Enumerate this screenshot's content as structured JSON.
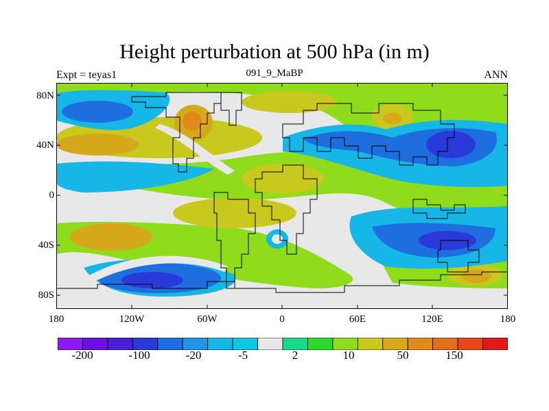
{
  "title": "Height perturbation at 500 hPa (in m)",
  "left_label": "Expt = teyas1",
  "center_label": "091_9_MaBP",
  "right_label": "ANN",
  "map": {
    "projection": "cylindrical equidistant",
    "lat_ticks": [
      "80N",
      "40N",
      "0",
      "40S",
      "80S"
    ],
    "lat_values": [
      80,
      40,
      0,
      -40,
      -80
    ],
    "lon_ticks": [
      "180",
      "120W",
      "60W",
      "0",
      "60E",
      "120E",
      "180"
    ],
    "lon_values": [
      -180,
      -120,
      -60,
      0,
      60,
      120,
      180
    ]
  },
  "colorbar": {
    "labels": [
      "-200",
      "-100",
      "-20",
      "-5",
      "2",
      "10",
      "50",
      "150"
    ],
    "colors": [
      "#8a1aef",
      "#6a10e4",
      "#4a1ed8",
      "#2a3ad8",
      "#1f6ee0",
      "#2196e6",
      "#16b6e6",
      "#10c7e3",
      "#e8e8e8",
      "#18d88a",
      "#2ed82a",
      "#8fdc1c",
      "#c8c81e",
      "#d6a81c",
      "#e08a1a",
      "#e2701a",
      "#e6461a",
      "#e01a1a"
    ]
  },
  "colors": {
    "ocean_grey": "#e8e8e8",
    "coastline": "#000000"
  }
}
